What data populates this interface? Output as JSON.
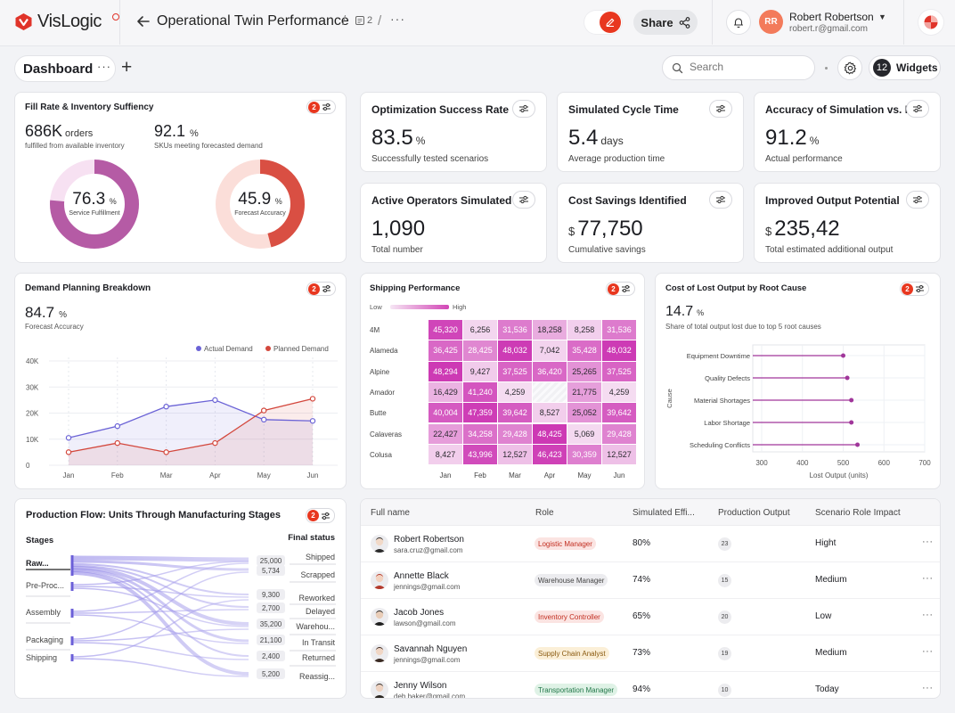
{
  "app": {
    "brand": "VisLogic",
    "page_title": "Operational Twin Performance",
    "doc_count": "2",
    "share_label": "Share",
    "user": {
      "initials": "RR",
      "name": "Robert Robertson",
      "email": "robert.r@gmail.com"
    }
  },
  "dashboard": {
    "title": "Dashboard",
    "search_placeholder": "Search",
    "widgets_label": "Widgets",
    "widgets_count": "12"
  },
  "fill_rate": {
    "title": "Fill Rate & Inventory Suffiency",
    "badge": "2",
    "orders_value": "686K",
    "orders_unit": "orders",
    "orders_caption": "fulfilled from available inventory",
    "sku_value": "92.1",
    "sku_unit": "%",
    "sku_caption": "SKUs meeting forecasted demand",
    "donut1": {
      "value": "76.3",
      "unit": "%",
      "label": "Service Fulfillment",
      "fraction": 0.763,
      "color": "#b55ba5",
      "track": "#f7e1f2"
    },
    "donut2": {
      "value": "45.9",
      "unit": "%",
      "label": "Forecast Accuracy",
      "fraction": 0.459,
      "color": "#d94f43",
      "track": "#fbded9"
    }
  },
  "kpis": [
    {
      "title": "Optimization Success Rate",
      "prefix": "",
      "value": "83.5",
      "unit": "%",
      "sub": "Successfully tested scenarios"
    },
    {
      "title": "Simulated Cycle Time",
      "prefix": "",
      "value": "5.4",
      "unit": "days",
      "sub": "Average production time"
    },
    {
      "title": "Accuracy of Simulation vs. Rea",
      "prefix": "",
      "value": "91.2",
      "unit": "%",
      "sub": "Actual performance"
    },
    {
      "title": "Active Operators Simulated",
      "prefix": "",
      "value": "1,090",
      "unit": "",
      "sub": "Total number"
    },
    {
      "title": "Cost Savings Identified",
      "prefix": "$",
      "value": "77,750",
      "unit": "",
      "sub": "Cumulative savings"
    },
    {
      "title": "Improved Output Potential",
      "prefix": "$",
      "value": "235,42",
      "unit": "",
      "sub": "Total estimated additional output"
    }
  ],
  "demand": {
    "title": "Demand Planning Breakdown",
    "badge": "2",
    "value": "84.7",
    "unit": "%",
    "caption": "Forecast Accuracy"
  },
  "shipping": {
    "title": "Shipping Performance",
    "badge": "2",
    "legend_low": "Low",
    "legend_high": "High"
  },
  "lost_output": {
    "title": "Cost of Lost Output by Root Cause",
    "badge": "2",
    "value": "14.7",
    "unit": "%",
    "caption": "Share of total output lost due to top 5 root causes"
  },
  "flow": {
    "title": "Production Flow: Units Through Manufacturing Stages",
    "badge": "2",
    "stages_header": "Stages",
    "final_header": "Final status",
    "stages": [
      "Raw...",
      "Pre-Proc...",
      "Assembly",
      "Packaging",
      "Shipping"
    ],
    "final": [
      "Shipped",
      "Scrapped",
      "Reworked",
      "Delayed",
      "Warehou...",
      "In Transit",
      "Returned",
      "Reassig..."
    ],
    "values": [
      "25,000",
      "5,734",
      "9,300",
      "2,700",
      "35,200",
      "21,100",
      "2,400",
      "5,200"
    ]
  },
  "table": {
    "headers": [
      "Full name",
      "Role",
      "Simulated Effi...",
      "Production Output",
      "Scenario Role Impact"
    ],
    "rows": [
      {
        "name": "Robert Robertson",
        "email": "sara.cruz@gmail.com",
        "role": "Logistic Manager",
        "role_style": "red",
        "efficiency": "80%",
        "output": "23",
        "impact": "Hight"
      },
      {
        "name": "Annette Black",
        "email": "jennings@gmail.com",
        "role": "Warehouse Manager",
        "role_style": "gray",
        "efficiency": "74%",
        "output": "15",
        "impact": "Medium"
      },
      {
        "name": "Jacob Jones",
        "email": "lawson@gmail.com",
        "role": "Inventory Controller",
        "role_style": "red",
        "efficiency": "65%",
        "output": "20",
        "impact": "Low"
      },
      {
        "name": "Savannah Nguyen",
        "email": "jennings@gmail.com",
        "role": "Supply Chain Analyst",
        "role_style": "yellow",
        "efficiency": "73%",
        "output": "19",
        "impact": "Medium"
      },
      {
        "name": "Jenny Wilson",
        "email": "deb.baker@gmail.com",
        "role": "Transportation Manager",
        "role_style": "green",
        "efficiency": "94%",
        "output": "10",
        "impact": "Today"
      }
    ]
  },
  "chart_data": [
    {
      "type": "line",
      "title": "Demand Planning Breakdown",
      "categories": [
        "Jan",
        "Feb",
        "Mar",
        "Apr",
        "May",
        "Jun"
      ],
      "y_ticks": [
        "40K",
        "30K",
        "20K",
        "10K",
        "0"
      ],
      "ylim": [
        0,
        40000
      ],
      "legend_position": "top-right",
      "series": [
        {
          "name": "Actual Demand",
          "color": "#6b63d6",
          "values": [
            10500,
            15000,
            22500,
            25000,
            17500,
            17000
          ]
        },
        {
          "name": "Planned Demand",
          "color": "#d3473c",
          "values": [
            5000,
            8500,
            5000,
            8500,
            21000,
            25500
          ]
        }
      ]
    },
    {
      "type": "heatmap",
      "title": "Shipping Performance",
      "rows": [
        "4M",
        "Alameda",
        "Alpine",
        "Amador",
        "Butte",
        "Calaveras",
        "Colusa"
      ],
      "columns": [
        "Jan",
        "Feb",
        "Mar",
        "Apr",
        "May",
        "Jun"
      ],
      "values": [
        [
          45320,
          6256,
          31536,
          18258,
          8258,
          31536
        ],
        [
          36425,
          28425,
          48032,
          7042,
          35428,
          48032
        ],
        [
          48294,
          9427,
          37525,
          36420,
          25265,
          37525
        ],
        [
          16429,
          41240,
          4259,
          null,
          21775,
          4259
        ],
        [
          40004,
          47359,
          39642,
          8527,
          25052,
          39642
        ],
        [
          22427,
          34258,
          29428,
          48425,
          5069,
          29428
        ],
        [
          8427,
          43996,
          12527,
          46423,
          30359,
          12527
        ]
      ]
    },
    {
      "type": "scatter",
      "title": "Cost of Lost Output by Root Cause",
      "xlabel": "Lost Output (units)",
      "ylabel": "Cause",
      "x_ticks": [
        "300",
        "400",
        "500",
        "600",
        "700"
      ],
      "xlim": [
        300,
        700
      ],
      "categories": [
        "Equipment Downtime",
        "Quality Defects",
        "Material Shortages",
        "Labor Shortage",
        "Scheduling Conflicts"
      ],
      "values": [
        500,
        510,
        520,
        520,
        535
      ],
      "color": "#a0369a"
    }
  ]
}
